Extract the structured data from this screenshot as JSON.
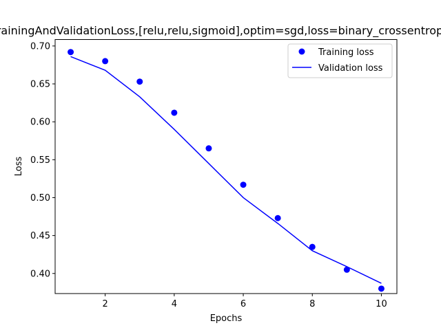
{
  "chart_data": {
    "type": "line",
    "title": "TrainingAndValidationLoss,[relu,relu,sigmoid],optim=sgd,loss=binary_crossentropy",
    "xlabel": "Epochs",
    "ylabel": "Loss",
    "xlim": [
      0.55,
      10.45
    ],
    "ylim": [
      0.3735,
      0.7085
    ],
    "xticks": [
      2,
      4,
      6,
      8,
      10
    ],
    "yticks": [
      0.4,
      0.45,
      0.5,
      0.55,
      0.6,
      0.65,
      0.7
    ],
    "xtick_labels": [
      "2",
      "4",
      "6",
      "8",
      "10"
    ],
    "ytick_labels": [
      "0.40",
      "0.45",
      "0.50",
      "0.55",
      "0.60",
      "0.65",
      "0.70"
    ],
    "grid": false,
    "legend_position": "top-right",
    "series": [
      {
        "name": "Training loss",
        "style": "markers",
        "color": "#0000ff",
        "x": [
          1,
          2,
          3,
          4,
          5,
          6,
          7,
          8,
          9,
          10
        ],
        "y": [
          0.692,
          0.68,
          0.653,
          0.612,
          0.565,
          0.517,
          0.473,
          0.435,
          0.405,
          0.38
        ]
      },
      {
        "name": "Validation loss",
        "style": "line",
        "color": "#0000ff",
        "x": [
          1,
          2,
          3,
          4,
          5,
          6,
          7,
          8,
          9,
          10
        ],
        "y": [
          0.686,
          0.668,
          0.633,
          0.59,
          0.545,
          0.5,
          0.466,
          0.43,
          0.409,
          0.387
        ]
      }
    ]
  }
}
